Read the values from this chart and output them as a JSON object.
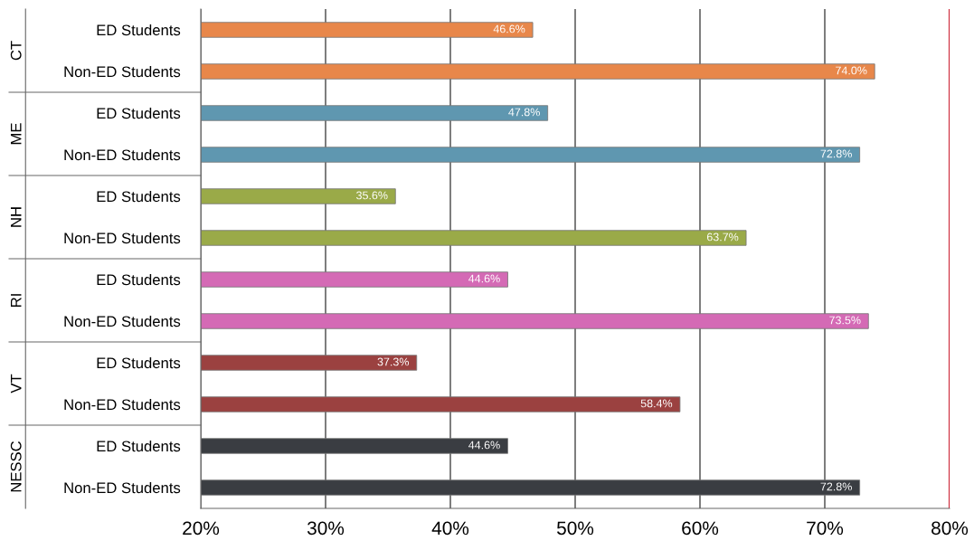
{
  "chart_data": {
    "type": "bar",
    "orientation": "horizontal",
    "categories": [
      "ED Students",
      "Non-ED Students",
      "ED Students",
      "Non-ED Students",
      "ED Students",
      "Non-ED Students",
      "ED Students",
      "Non-ED Students",
      "ED Students",
      "Non-ED Students",
      "ED Students",
      "Non-ED Students"
    ],
    "values": [
      46.6,
      74.0,
      47.8,
      72.8,
      35.6,
      63.7,
      44.6,
      73.5,
      37.3,
      58.4,
      44.6,
      72.8
    ],
    "value_labels": [
      "46.6%",
      "74.0%",
      "47.8%",
      "72.8%",
      "35.6%",
      "63.7%",
      "44.6%",
      "73.5%",
      "37.3%",
      "58.4%",
      "44.6%",
      "72.8%"
    ],
    "colors": [
      "#e8874a",
      "#e8874a",
      "#5f97b0",
      "#5f97b0",
      "#9aaa48",
      "#9aaa48",
      "#d46ab5",
      "#d46ab5",
      "#9b4140",
      "#9b4140",
      "#3a3d42",
      "#3a3d42"
    ],
    "annotations": [
      "CT",
      "ME",
      "NH",
      "RI",
      "VT",
      "NESSC"
    ],
    "xlim": [
      20,
      80
    ],
    "xticks": [
      {
        "value": 20,
        "label": "20%"
      },
      {
        "value": 30,
        "label": "30%"
      },
      {
        "value": 40,
        "label": "40%"
      },
      {
        "value": 50,
        "label": "50%"
      },
      {
        "value": 60,
        "label": "60%"
      },
      {
        "value": 70,
        "label": "70%"
      },
      {
        "value": 80,
        "label": "80%"
      }
    ],
    "ref_lines": [
      {
        "axis": "x",
        "value": 80,
        "color": "#cc2233"
      }
    ],
    "grid": "x"
  }
}
